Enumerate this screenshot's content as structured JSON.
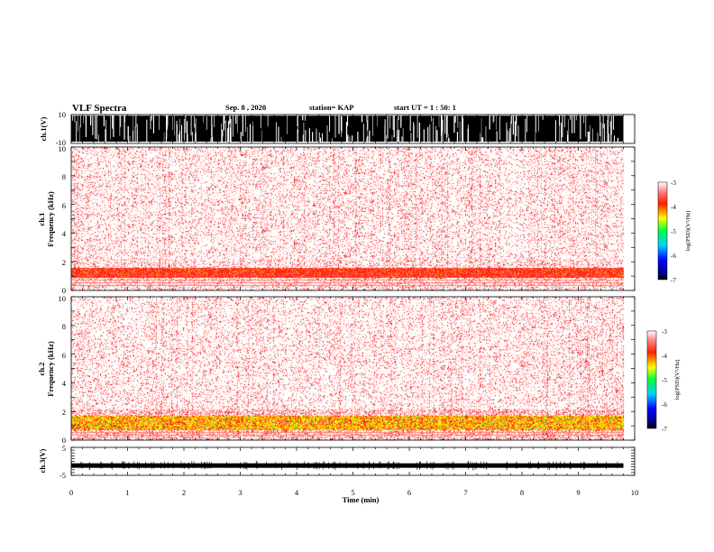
{
  "header": {
    "title": "VLF Spectra",
    "date": "Sep. 8 , 2020",
    "station": "station= KAP",
    "start": "start UT = 1 : 50: 1"
  },
  "chart_data": [
    {
      "type": "line",
      "name": "ch1-waveform",
      "ylabel": "ch.1(V)",
      "ylim": [
        -10,
        10
      ],
      "yticks": [
        "10",
        "-10"
      ],
      "xlim": [
        0,
        10
      ],
      "data_extent_min": 9.8,
      "description_level": "saturated between -10 and 10"
    },
    {
      "type": "heatmap",
      "name": "ch1-spectrogram",
      "ylabel": "ch.1 Frequency (kHz)",
      "ylabel_line1": "ch.1",
      "ylabel_line2": "Frequency (kHz)",
      "ylim": [
        0,
        10
      ],
      "yticks": [
        "0",
        "2",
        "4",
        "6",
        "8",
        "10"
      ],
      "xlim": [
        0,
        10
      ],
      "data_extent_min": 9.8,
      "strong_band_khz": [
        0.9,
        1.6
      ],
      "colorbar": {
        "label": "log(PSD)(V²/Hz)",
        "range": [
          -7,
          -3
        ],
        "ticks": [
          "-3",
          "-4",
          "-5",
          "-6",
          "-7"
        ]
      }
    },
    {
      "type": "heatmap",
      "name": "ch2-spectrogram",
      "ylabel": "ch.2 Frequency (kHz)",
      "ylabel_line1": "ch.2",
      "ylabel_line2": "Frequency (kHz)",
      "ylim": [
        0,
        10
      ],
      "yticks": [
        "0",
        "2",
        "4",
        "6",
        "8",
        "10"
      ],
      "xlim": [
        0,
        10
      ],
      "data_extent_min": 9.8,
      "strong_band_khz": [
        0.7,
        1.7
      ],
      "colorbar": {
        "label": "log(PSD)(V²/Hz)",
        "range": [
          -7,
          -3
        ],
        "ticks": [
          "-3",
          "-4",
          "-5",
          "-6",
          "-7"
        ]
      }
    },
    {
      "type": "line",
      "name": "ch3-waveform",
      "ylabel": "ch.3(V)",
      "ylim": [
        -5,
        5
      ],
      "yticks": [
        "5",
        "-5"
      ],
      "xlim": [
        0,
        10
      ],
      "data_extent_min": 9.8,
      "level_volts": -1.5
    }
  ],
  "xaxis": {
    "label": "Time (min)",
    "ticks": [
      "0",
      "1",
      "2",
      "3",
      "4",
      "5",
      "6",
      "7",
      "8",
      "9",
      "10"
    ]
  },
  "colors": {
    "spectrogram_low": "#ffffff",
    "spectrogram_mid": "#ff2020",
    "spectrogram_high": "#ffff00",
    "waveform": "#000000"
  }
}
